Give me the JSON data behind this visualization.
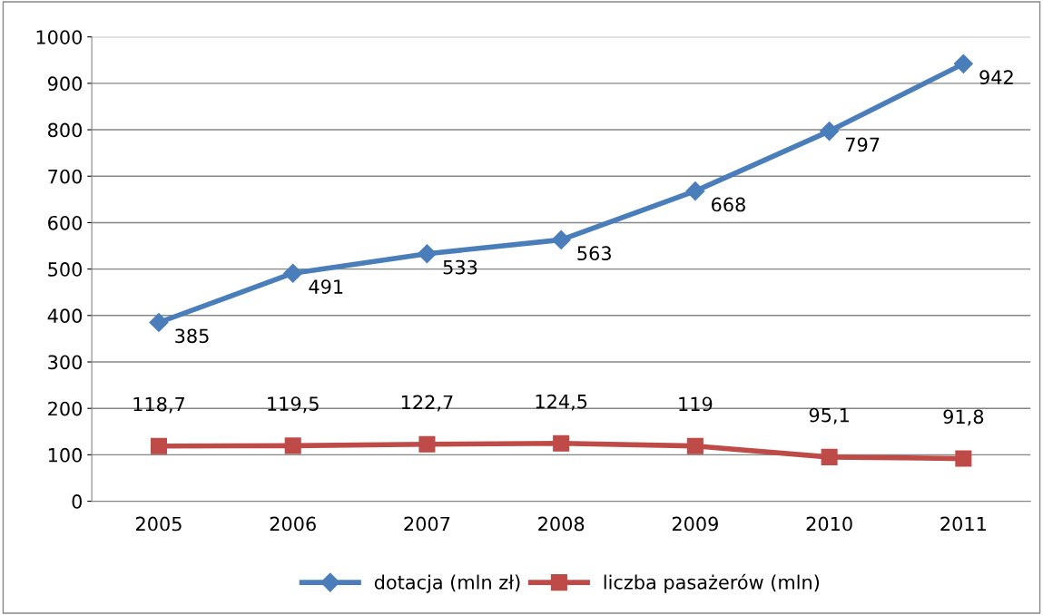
{
  "chart_data": {
    "type": "line",
    "categories": [
      "2005",
      "2006",
      "2007",
      "2008",
      "2009",
      "2010",
      "2011"
    ],
    "series": [
      {
        "name": "dotacja (mln zł)",
        "color": "#4a7ebb",
        "marker": "diamond",
        "values": [
          385,
          491,
          533,
          563,
          668,
          797,
          942
        ],
        "value_labels": [
          "385",
          "491",
          "533",
          "563",
          "668",
          "797",
          "942"
        ]
      },
      {
        "name": "liczba pasażerów (mln)",
        "color": "#be4b48",
        "marker": "square",
        "values": [
          118.7,
          119.5,
          122.7,
          124.5,
          119,
          95.1,
          91.8
        ],
        "value_labels": [
          "118,7",
          "119,5",
          "122,7",
          "124,5",
          "119",
          "95,1",
          "91,8"
        ]
      }
    ],
    "ylim": [
      0,
      1000
    ],
    "yticks": [
      0,
      100,
      200,
      300,
      400,
      500,
      600,
      700,
      800,
      900,
      1000
    ],
    "grid": "y",
    "legend": "bottom",
    "line_style": "solid"
  }
}
